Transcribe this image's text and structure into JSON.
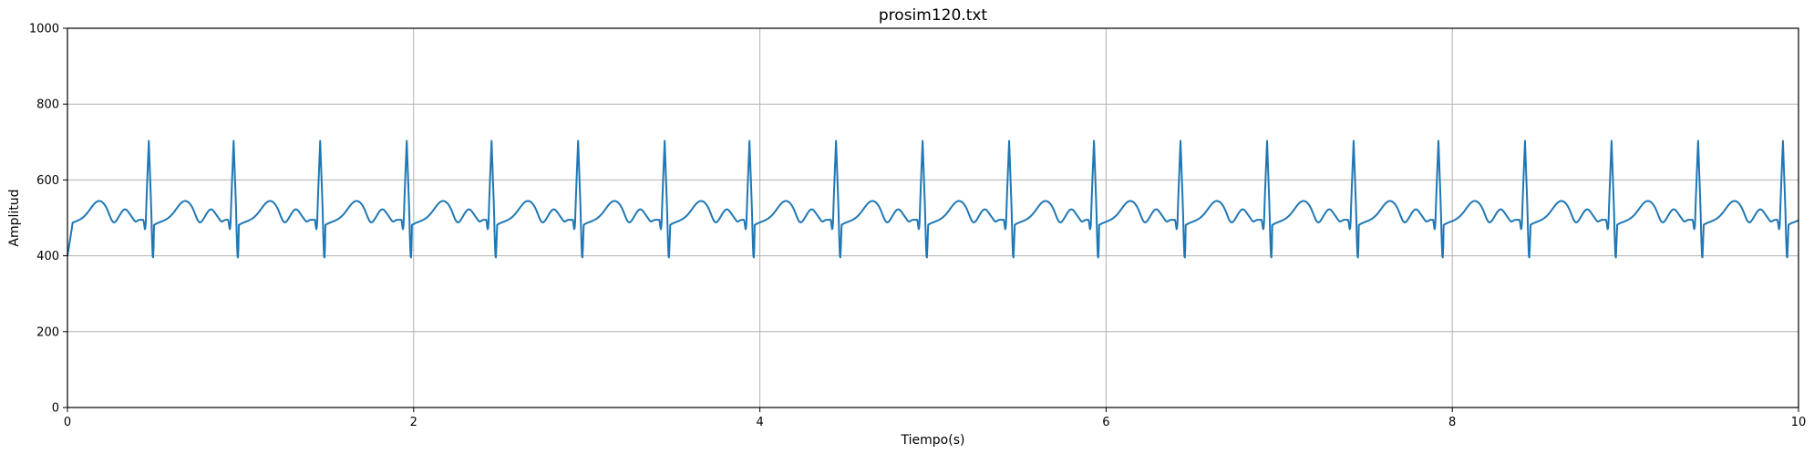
{
  "chart_data": {
    "type": "line",
    "title": "prosim120.txt",
    "xlabel": "Tiempo(s)",
    "ylabel": "Amplitud",
    "xlim": [
      0,
      10
    ],
    "ylim": [
      0,
      1000
    ],
    "xticks": [
      0,
      2,
      4,
      6,
      8,
      10
    ],
    "yticks": [
      0,
      200,
      400,
      600,
      800,
      1000
    ],
    "grid": true,
    "series_color": "#1f77b4",
    "series": [
      {
        "beat_times_s": [
          0.47,
          0.96,
          1.46,
          1.96,
          2.45,
          2.95,
          3.45,
          3.94,
          4.44,
          4.94,
          5.44,
          5.93,
          6.43,
          6.93,
          7.43,
          7.92,
          8.42,
          8.92,
          9.42,
          9.91
        ],
        "peak": 703,
        "trough": 393,
        "baseline": 495,
        "t_wave_peak": 545,
        "p_wave_peak": 522,
        "post_s_level": 470,
        "start_value": 400,
        "end_value": 510
      }
    ]
  }
}
